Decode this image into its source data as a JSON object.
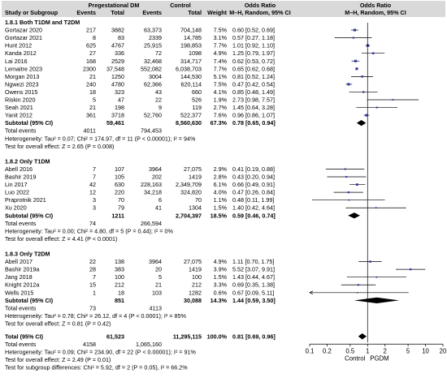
{
  "chart_data": {
    "type": "forest",
    "header": {
      "group1": "Pregestational DM",
      "group2": "Control",
      "or_label": "Odds Ratio",
      "or_sub": "M–H, Random, 95% CI",
      "plot_label": "Odds Ratio",
      "plot_sub": "M–H, Random, 95% CI",
      "study_col": "Study or Subgroup",
      "events1": "Events",
      "total1": "Total",
      "events2": "Events",
      "total2": "Total",
      "weight": "Weight"
    },
    "x_axis": {
      "scale": "log",
      "range": [
        0.1,
        20
      ],
      "ticks": [
        0.1,
        0.2,
        0.5,
        1,
        2,
        5,
        10,
        20
      ],
      "tick_labels": [
        "0.1",
        "0.2",
        "0.5",
        "1",
        "2",
        "5",
        "10",
        "20"
      ],
      "left_label": "Control",
      "right_label": "PGDM"
    },
    "subgroups": [
      {
        "title": "1.8.1 Both T1DM and T2DM",
        "studies": [
          {
            "name": "Gortazar 2020",
            "e1": "217",
            "t1": "3882",
            "e2": "63,373",
            "t2": "704,148",
            "w": "7.5%",
            "ci": "0.60 [0.52, 0.69]",
            "or": 0.6,
            "lo": 0.52,
            "hi": 0.69
          },
          {
            "name": "Gortazar 2021",
            "e1": "8",
            "t1": "83",
            "e2": "2339",
            "t2": "14,785",
            "w": "3.1%",
            "ci": "0.57 [0.27, 1.18]",
            "or": 0.57,
            "lo": 0.27,
            "hi": 1.18
          },
          {
            "name": "Hunt 2012",
            "e1": "625",
            "t1": "4767",
            "e2": "25,915",
            "t2": "198,853",
            "w": "7.7%",
            "ci": "1.01 [0.92, 1.10]",
            "or": 1.01,
            "lo": 0.92,
            "hi": 1.1
          },
          {
            "name": "Kanda 2012",
            "e1": "27",
            "t1": "336",
            "e2": "72",
            "t2": "1098",
            "w": "4.9%",
            "ci": "1.25 [0.79, 1.97]",
            "or": 1.25,
            "lo": 0.79,
            "hi": 1.97
          },
          {
            "name": "Lai 2016",
            "e1": "168",
            "t1": "2529",
            "e2": "32,468",
            "t2": "314,717",
            "w": "7.4%",
            "ci": "0.62 [0.53, 0.72]",
            "or": 0.62,
            "lo": 0.53,
            "hi": 0.72
          },
          {
            "name": "Lemaitre 2023",
            "e1": "2300",
            "t1": "37,548",
            "e2": "552,082",
            "t2": "6,038,703",
            "w": "7.7%",
            "ci": "0.65 [0.62, 0.68]",
            "or": 0.65,
            "lo": 0.62,
            "hi": 0.68
          },
          {
            "name": "Morgan 2013",
            "e1": "21",
            "t1": "1250",
            "e2": "3004",
            "t2": "144,530",
            "w": "5.1%",
            "ci": "0.81 [0.52, 1.24]",
            "or": 0.81,
            "lo": 0.52,
            "hi": 1.24
          },
          {
            "name": "Ngwezi 2023",
            "e1": "240",
            "t1": "4780",
            "e2": "62,366",
            "t2": "620,114",
            "w": "7.5%",
            "ci": "0.47 [0.42, 0.54]",
            "or": 0.47,
            "lo": 0.42,
            "hi": 0.54
          },
          {
            "name": "Owens 2015",
            "e1": "18",
            "t1": "323",
            "e2": "43",
            "t2": "660",
            "w": "4.1%",
            "ci": "0.85 [0.48, 1.49]",
            "or": 0.85,
            "lo": 0.48,
            "hi": 1.49
          },
          {
            "name": "Riskin 2020",
            "e1": "5",
            "t1": "47",
            "e2": "22",
            "t2": "526",
            "w": "1.9%",
            "ci": "2.73 [0.98, 7.57]",
            "or": 2.73,
            "lo": 0.98,
            "hi": 7.57
          },
          {
            "name": "Seah 2021",
            "e1": "21",
            "t1": "198",
            "e2": "9",
            "t2": "119",
            "w": "2.7%",
            "ci": "1.45 [0.64, 3.28]",
            "or": 1.45,
            "lo": 0.64,
            "hi": 3.28
          },
          {
            "name": "Yanit 2012",
            "e1": "361",
            "t1": "3718",
            "e2": "52,760",
            "t2": "522,377",
            "w": "7.6%",
            "ci": "0.96 [0.86, 1.07]",
            "or": 0.96,
            "lo": 0.86,
            "hi": 1.07
          }
        ],
        "subtotal": {
          "label": "Subtotal (95% CI)",
          "t1": "59,461",
          "t2": "8,560,630",
          "w": "67.3%",
          "ci": "0.78 [0.65, 0.94]",
          "or": 0.78,
          "lo": 0.65,
          "hi": 0.94
        },
        "total_events": {
          "label": "Total events",
          "e1": "4011",
          "e2": "794,453"
        },
        "heterogeneity": "Heterogeneity: Tau² = 0.07; Chi² = 174.97, df = 11 (P < 0.00001); I² = 94%",
        "overall": "Test for overall effect: Z = 2.65 (P = 0.008)"
      },
      {
        "title": "1.8.2 Only T1DM",
        "studies": [
          {
            "name": "Abell 2016",
            "e1": "7",
            "t1": "107",
            "e2": "3964",
            "t2": "27,075",
            "w": "2.9%",
            "ci": "0.41 [0.19, 0.88]",
            "or": 0.41,
            "lo": 0.19,
            "hi": 0.88
          },
          {
            "name": "Bashir 2019",
            "e1": "7",
            "t1": "105",
            "e2": "202",
            "t2": "1419",
            "w": "2.8%",
            "ci": "0.43 [0.20, 0.94]",
            "or": 0.43,
            "lo": 0.2,
            "hi": 0.94
          },
          {
            "name": "Lin 2017",
            "e1": "42",
            "t1": "630",
            "e2": "228,163",
            "t2": "2,349,709",
            "w": "6.1%",
            "ci": "0.66 [0.49, 0.91]",
            "or": 0.66,
            "lo": 0.49,
            "hi": 0.91
          },
          {
            "name": "Luo 2022",
            "e1": "12",
            "t1": "220",
            "e2": "34,218",
            "t2": "324,820",
            "w": "4.0%",
            "ci": "0.47 [0.26, 0.84]",
            "or": 0.47,
            "lo": 0.26,
            "hi": 0.84
          },
          {
            "name": "Praprotnik 2021",
            "e1": "3",
            "t1": "70",
            "e2": "6",
            "t2": "70",
            "w": "1.1%",
            "ci": "0.48 [0.11, 1.99]",
            "or": 0.48,
            "lo": 0.11,
            "hi": 1.99
          },
          {
            "name": "Xu 2020",
            "e1": "3",
            "t1": "79",
            "e2": "41",
            "t2": "1304",
            "w": "1.5%",
            "ci": "1.40 [0.42, 4.64]",
            "or": 1.4,
            "lo": 0.42,
            "hi": 4.64
          }
        ],
        "subtotal": {
          "label": "Subtotal (95% CI)",
          "t1": "1211",
          "t2": "2,704,397",
          "w": "18.5%",
          "ci": "0.59 [0.46, 0.74]",
          "or": 0.59,
          "lo": 0.46,
          "hi": 0.74
        },
        "total_events": {
          "label": "Total events",
          "e1": "74",
          "e2": "266,594"
        },
        "heterogeneity": "Heterogeneity: Tau² = 0.00; Chi² = 4.80, df = 5 (P = 0.44); I² = 0%",
        "overall": "Test for overall effect: Z = 4.41 (P < 0.0001)"
      },
      {
        "title": "1.8.3 Only T2DM",
        "studies": [
          {
            "name": "Abell 2017",
            "e1": "22",
            "t1": "138",
            "e2": "3964",
            "t2": "27,075",
            "w": "4.9%",
            "ci": "1.11 [0.70, 1.75]",
            "or": 1.11,
            "lo": 0.7,
            "hi": 1.75
          },
          {
            "name": "Bashir 2019a",
            "e1": "28",
            "t1": "383",
            "e2": "20",
            "t2": "1419",
            "w": "3.9%",
            "ci": "5.52 [3.07, 9.91]",
            "or": 5.52,
            "lo": 3.07,
            "hi": 9.91
          },
          {
            "name": "Jang 2018",
            "e1": "7",
            "t1": "100",
            "e2": "5",
            "t2": "100",
            "w": "1.5%",
            "ci": "1.43 [0.44, 4.67]",
            "or": 1.43,
            "lo": 0.44,
            "hi": 4.67
          },
          {
            "name": "Knight 2012a",
            "e1": "15",
            "t1": "212",
            "e2": "21",
            "t2": "212",
            "w": "3.3%",
            "ci": "0.69 [0.35, 1.38]",
            "or": 0.69,
            "lo": 0.35,
            "hi": 1.38
          },
          {
            "name": "Wells 2015",
            "e1": "1",
            "t1": "18",
            "e2": "103",
            "t2": "1282",
            "w": "0.6%",
            "ci": "0.67 [0.09, 5.11]",
            "or": 0.67,
            "lo": 0.09,
            "hi": 5.11
          }
        ],
        "subtotal": {
          "label": "Subtotal (95% CI)",
          "t1": "851",
          "t2": "30,088",
          "w": "14.3%",
          "ci": "1.44 [0.59, 3.50]",
          "or": 1.44,
          "lo": 0.59,
          "hi": 3.5
        },
        "total_events": {
          "label": "Total events",
          "e1": "73",
          "e2": "4113"
        },
        "heterogeneity": "Heterogeneity: Tau² = 0.78; Chi² = 26.12, df = 4 (P < 0.0001); I² = 85%",
        "overall": "Test for overall effect: Z = 0.81 (P = 0.42)"
      }
    ],
    "total": {
      "label": "Total (95% CI)",
      "t1": "61,523",
      "t2": "11,295,115",
      "w": "100.0%",
      "ci": "0.81 [0.69, 0.96]",
      "or": 0.81,
      "lo": 0.69,
      "hi": 0.96
    },
    "total_events": {
      "label": "Total events",
      "e1": "4158",
      "e2": "1,065,160"
    },
    "heterogeneity": "Heterogeneity: Tau² = 0.09; Chi² = 234.90, df = 22 (P < 0.00001); I² = 91%",
    "overall": "Test for overall effect: Z = 2.49 (P = 0.01)",
    "subgroup_diff": "Test for subgroup differences: Chi² = 5.92, df = 2 (P = 0.05), I² = 66.2%",
    "colors": {
      "header_bg": "#d9d9d9",
      "marker": "#2e36a8",
      "diamond": "#000000"
    }
  }
}
